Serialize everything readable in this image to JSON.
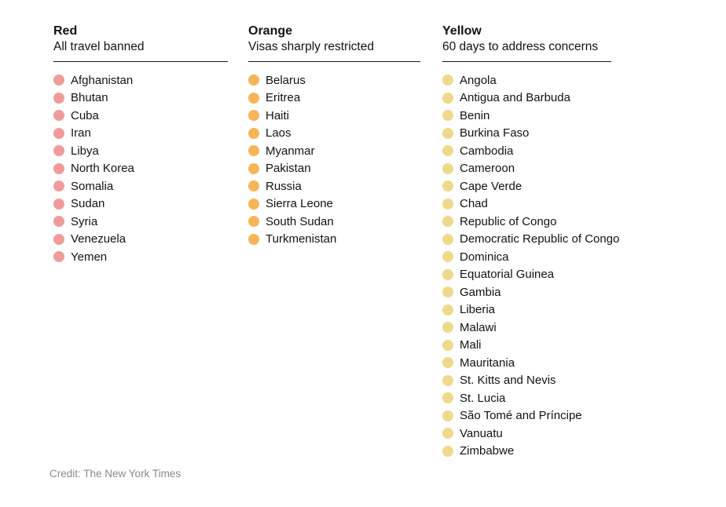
{
  "page": {
    "background_color": "#ffffff",
    "text_color": "#121212"
  },
  "columns": [
    {
      "title": "Red",
      "subtitle": "All travel banned",
      "dot_color": "#F09B9B",
      "countries": [
        "Afghanistan",
        "Bhutan",
        "Cuba",
        "Iran",
        "Libya",
        "North Korea",
        "Somalia",
        "Sudan",
        "Syria",
        "Venezuela",
        "Yemen"
      ]
    },
    {
      "title": "Orange",
      "subtitle": "Visas sharply restricted",
      "dot_color": "#F6B557",
      "countries": [
        "Belarus",
        "Eritrea",
        "Haiti",
        "Laos",
        "Myanmar",
        "Pakistan",
        "Russia",
        "Sierra Leone",
        "South Sudan",
        "Turkmenistan"
      ]
    },
    {
      "title": "Yellow",
      "subtitle": "60 days to address concerns",
      "dot_color": "#EFD98A",
      "countries": [
        "Angola",
        "Antigua and Barbuda",
        "Benin",
        "Burkina Faso",
        "Cambodia",
        "Cameroon",
        "Cape Verde",
        "Chad",
        "Republic of Congo",
        "Democratic Republic of Congo",
        "Dominica",
        "Equatorial Guinea",
        "Gambia",
        "Liberia",
        "Malawi",
        "Mali",
        "Mauritania",
        "St. Kitts and Nevis",
        "St. Lucia",
        "São Tomé and Príncipe",
        "Vanuatu",
        "Zimbabwe"
      ]
    }
  ],
  "credit": "Credit: The New York Times",
  "chart_data": {
    "type": "table",
    "title": "",
    "legend_position": "none",
    "categories": [
      "Red",
      "Orange",
      "Yellow"
    ],
    "series": [
      {
        "name": "Red",
        "label": "All travel banned",
        "color": "#F09B9B",
        "count": 11,
        "values": [
          "Afghanistan",
          "Bhutan",
          "Cuba",
          "Iran",
          "Libya",
          "North Korea",
          "Somalia",
          "Sudan",
          "Syria",
          "Venezuela",
          "Yemen"
        ]
      },
      {
        "name": "Orange",
        "label": "Visas sharply restricted",
        "color": "#F6B557",
        "count": 10,
        "values": [
          "Belarus",
          "Eritrea",
          "Haiti",
          "Laos",
          "Myanmar",
          "Pakistan",
          "Russia",
          "Sierra Leone",
          "South Sudan",
          "Turkmenistan"
        ]
      },
      {
        "name": "Yellow",
        "label": "60 days to address concerns",
        "color": "#EFD98A",
        "count": 22,
        "values": [
          "Angola",
          "Antigua and Barbuda",
          "Benin",
          "Burkina Faso",
          "Cambodia",
          "Cameroon",
          "Cape Verde",
          "Chad",
          "Republic of Congo",
          "Democratic Republic of Congo",
          "Dominica",
          "Equatorial Guinea",
          "Gambia",
          "Liberia",
          "Malawi",
          "Mali",
          "Mauritania",
          "St. Kitts and Nevis",
          "St. Lucia",
          "São Tomé and Príncipe",
          "Vanuatu",
          "Zimbabwe"
        ]
      }
    ]
  }
}
